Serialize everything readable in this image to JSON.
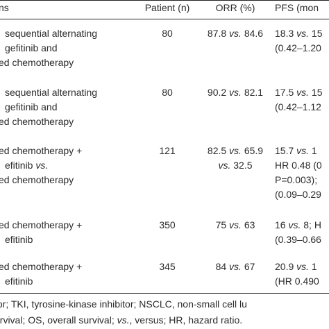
{
  "table": {
    "headers": [
      "ns",
      "Patient (n)",
      "ORR (%)",
      "PFS (mon"
    ],
    "rows": [
      {
        "regimen": [
          "sequential alternating",
          "gefitinib and",
          "ed chemotherapy"
        ],
        "patients": "80",
        "orr": [
          "87.8 vs. 84.6"
        ],
        "pfs": [
          "18.3 vs. 15",
          "(0.42–1.20"
        ]
      },
      {
        "regimen": [
          "sequential alternating",
          "gefitinib and",
          "ed chemotherapy"
        ],
        "patients": "80",
        "orr": [
          "90.2 vs. 82.1"
        ],
        "pfs": [
          "17.5 vs. 15",
          "(0.42–1.12"
        ]
      },
      {
        "regimen": [
          "ed chemotherapy +",
          "efitinib vs.",
          "ed chemotherapy"
        ],
        "patients": "121",
        "orr": [
          "82.5 vs. 65.9",
          "vs. 32.5"
        ],
        "pfs": [
          "15.7 vs. 1",
          "HR 0.48 (0",
          "P=0.003);",
          "(0.09–0.29"
        ]
      },
      {
        "regimen": [
          "ed chemotherapy +",
          "efitinib"
        ],
        "patients": "350",
        "orr": [
          "75 vs. 63"
        ],
        "pfs": [
          "16 vs. 8; H",
          "(0.39–0.66"
        ]
      },
      {
        "regimen": [
          "ed chemotherapy +",
          "efitinib"
        ],
        "patients": "345",
        "orr": [
          "84 vs. 67"
        ],
        "pfs": [
          "20.9 vs. 1",
          "(HR 0.490"
        ]
      }
    ]
  },
  "footnote": [
    "tor; TKI, tyrosine-kinase inhibitor; NSCLC, non-small cell lu",
    "urvival; OS, overall survival; vs., versus; HR, hazard ratio."
  ]
}
